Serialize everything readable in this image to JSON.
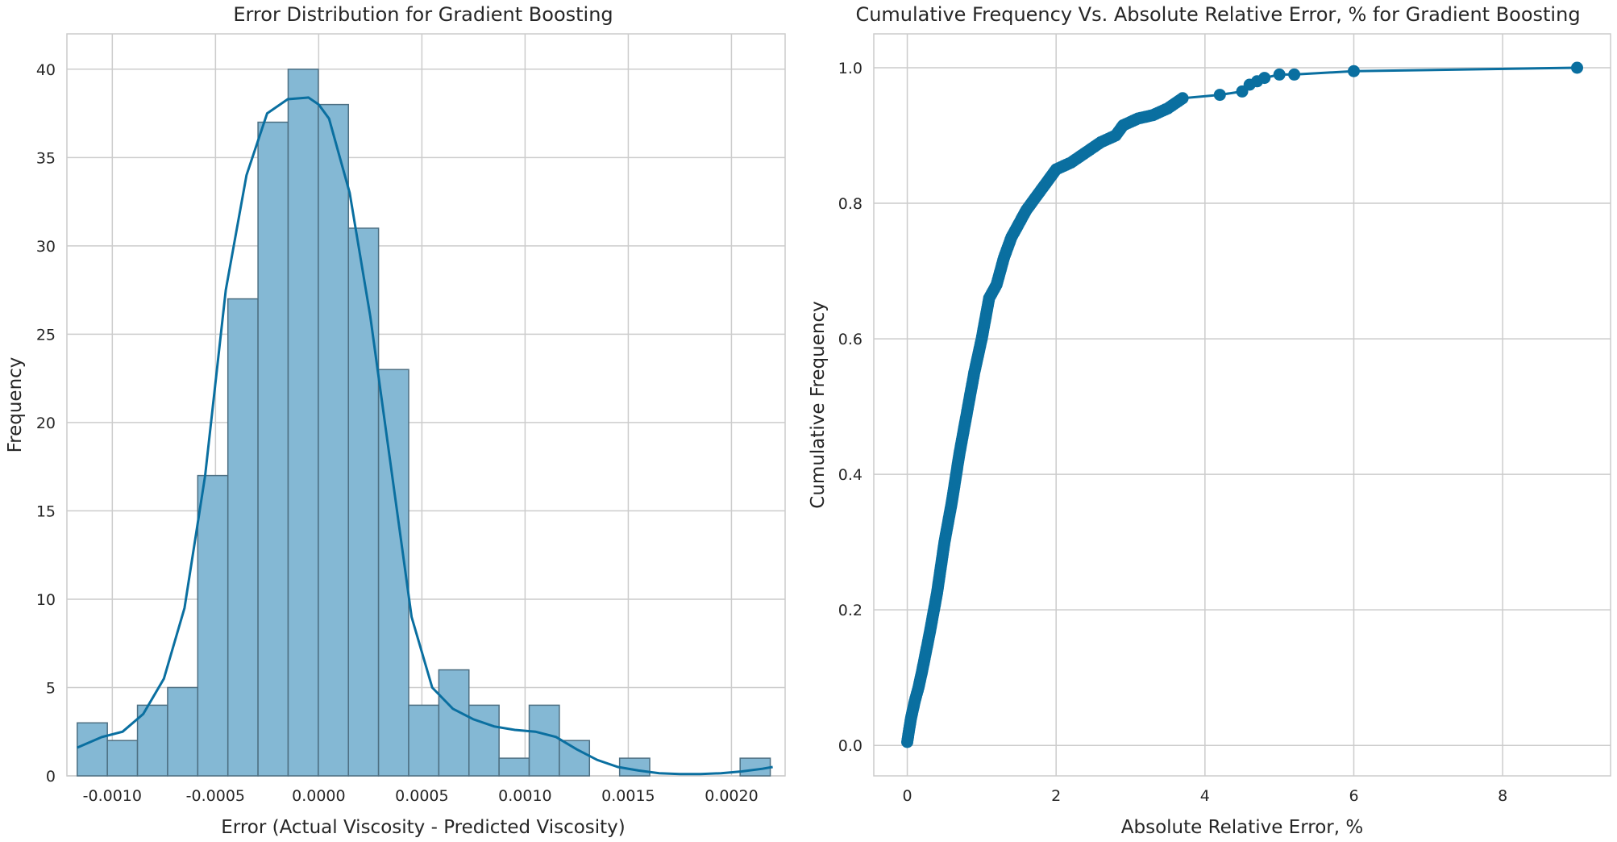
{
  "chart_data": [
    {
      "type": "bar",
      "title": "Error Distribution for Gradient Boosting",
      "xlabel": "Error (Actual Viscosity - Predicted Viscosity)",
      "ylabel": "Frequency",
      "xlim": [
        -0.00122,
        0.00226
      ],
      "ylim": [
        0,
        42
      ],
      "xticks": [
        -0.001,
        -0.0005,
        0.0,
        0.0005,
        0.001,
        0.0015,
        0.002
      ],
      "xtick_labels": [
        "-0.0010",
        "-0.0005",
        "0.0000",
        "0.0005",
        "0.0010",
        "0.0015",
        "0.0020"
      ],
      "yticks": [
        0,
        5,
        10,
        15,
        20,
        25,
        30,
        35,
        40
      ],
      "ytick_labels": [
        "0",
        "5",
        "10",
        "15",
        "20",
        "25",
        "30",
        "35",
        "40"
      ],
      "bin_start": -0.00117,
      "bin_width": 0.000146,
      "values": [
        3,
        2,
        4,
        5,
        17,
        27,
        37,
        40,
        38,
        31,
        23,
        4,
        6,
        4,
        1,
        4,
        2,
        0,
        1,
        0,
        0,
        0,
        1
      ],
      "kde": {
        "x": [
          -0.00117,
          -0.00105,
          -0.00095,
          -0.00085,
          -0.00075,
          -0.00065,
          -0.00055,
          -0.00045,
          -0.00035,
          -0.00025,
          -0.00015,
          -5e-05,
          0.0,
          5e-05,
          0.00015,
          0.00025,
          0.00035,
          0.00045,
          0.00055,
          0.00065,
          0.00075,
          0.00085,
          0.00095,
          0.00105,
          0.00115,
          0.00125,
          0.00135,
          0.00145,
          0.00155,
          0.00165,
          0.00175,
          0.00185,
          0.00195,
          0.00205,
          0.00215,
          0.0022
        ],
        "y": [
          1.6,
          2.2,
          2.5,
          3.5,
          5.5,
          9.5,
          17.0,
          27.5,
          34.0,
          37.5,
          38.3,
          38.4,
          38.0,
          37.2,
          33.0,
          26.0,
          17.5,
          9.0,
          5.0,
          3.8,
          3.2,
          2.8,
          2.6,
          2.5,
          2.2,
          1.5,
          0.9,
          0.5,
          0.3,
          0.15,
          0.1,
          0.1,
          0.15,
          0.25,
          0.4,
          0.5
        ],
        "color": "#0a6fa0"
      },
      "bar_color": "#84b8d4",
      "grid": true
    },
    {
      "type": "line",
      "title": "Cumulative Frequency Vs. Absolute Relative Error, % for Gradient Boosting",
      "xlabel": "Absolute Relative Error, %",
      "ylabel": "Cumulative Frequency",
      "xlim": [
        -0.45,
        9.45
      ],
      "ylim": [
        -0.045,
        1.05
      ],
      "xticks": [
        0,
        2,
        4,
        6,
        8
      ],
      "xtick_labels": [
        "0",
        "2",
        "4",
        "6",
        "8"
      ],
      "yticks": [
        0.0,
        0.2,
        0.4,
        0.6,
        0.8,
        1.0
      ],
      "ytick_labels": [
        "0.0",
        "0.2",
        "0.4",
        "0.6",
        "0.8",
        "1.0"
      ],
      "curve": {
        "x": [
          0.0,
          0.02,
          0.05,
          0.1,
          0.15,
          0.2,
          0.3,
          0.4,
          0.5,
          0.6,
          0.7,
          0.8,
          0.9,
          1.0,
          1.1,
          1.2,
          1.3,
          1.4,
          1.5,
          1.6,
          1.7,
          1.8,
          1.9,
          2.0,
          2.2,
          2.4,
          2.6,
          2.8,
          2.9,
          3.1,
          3.3,
          3.5,
          3.7,
          4.2,
          4.5,
          4.6,
          4.7,
          4.8,
          5.0,
          5.2,
          6.0,
          9.0
        ],
        "y": [
          0.005,
          0.02,
          0.04,
          0.065,
          0.085,
          0.11,
          0.165,
          0.225,
          0.3,
          0.36,
          0.43,
          0.49,
          0.55,
          0.6,
          0.66,
          0.68,
          0.72,
          0.75,
          0.77,
          0.79,
          0.805,
          0.82,
          0.835,
          0.85,
          0.86,
          0.875,
          0.89,
          0.9,
          0.915,
          0.925,
          0.93,
          0.94,
          0.955,
          0.96,
          0.965,
          0.975,
          0.98,
          0.985,
          0.99,
          0.99,
          0.995,
          1.0
        ]
      },
      "color": "#0a6fa0",
      "grid": true
    }
  ]
}
